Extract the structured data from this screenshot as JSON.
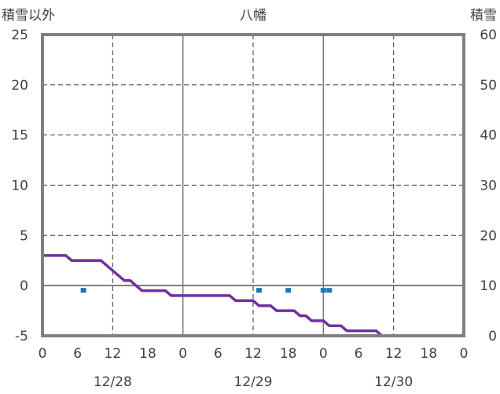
{
  "chart_data": {
    "type": "line",
    "title": "八幡",
    "left_axis_label": "積雪以外",
    "right_axis_label": "積雪",
    "ylim_left": [
      -5,
      25
    ],
    "ylim_right": [
      0,
      60
    ],
    "yticks_left": [
      25,
      20,
      15,
      10,
      5,
      0,
      -5
    ],
    "yticks_right": [
      60,
      50,
      40,
      30,
      20,
      10,
      0
    ],
    "x_hours": [
      0,
      72
    ],
    "x_tick_labels": [
      "0",
      "6",
      "12",
      "18",
      "0",
      "6",
      "12",
      "18",
      "0",
      "6",
      "12",
      "18",
      "0"
    ],
    "date_labels": [
      {
        "hour": 12,
        "label": "12/28"
      },
      {
        "hour": 36,
        "label": "12/29"
      },
      {
        "hour": 60,
        "label": "12/30"
      }
    ],
    "grid": {
      "major_every_hours": 12,
      "day_lines": [
        24,
        48
      ],
      "y_grid": true
    },
    "temperature": {
      "color": "#7030a0",
      "points": [
        [
          0,
          3
        ],
        [
          4,
          3
        ],
        [
          5,
          2.5
        ],
        [
          10,
          2.5
        ],
        [
          13,
          1
        ],
        [
          14,
          0.5
        ],
        [
          15,
          0.5
        ],
        [
          17,
          -0.5
        ],
        [
          21,
          -0.5
        ],
        [
          22,
          -1
        ],
        [
          32,
          -1
        ],
        [
          33,
          -1.5
        ],
        [
          36,
          -1.5
        ],
        [
          37,
          -2
        ],
        [
          39,
          -2
        ],
        [
          40,
          -2.5
        ],
        [
          43,
          -2.5
        ],
        [
          44,
          -3
        ],
        [
          45,
          -3
        ],
        [
          46,
          -3.5
        ],
        [
          48,
          -3.5
        ],
        [
          49,
          -4
        ],
        [
          51,
          -4
        ],
        [
          52,
          -4.5
        ],
        [
          57,
          -4.5
        ],
        [
          58,
          -5
        ],
        [
          71,
          -5
        ]
      ]
    },
    "precipitation": {
      "color": "#1f77b4",
      "hours": [
        7,
        37,
        42,
        48,
        49
      ],
      "values": [
        0.5,
        0.5,
        0.5,
        0.5,
        0.5
      ]
    }
  }
}
